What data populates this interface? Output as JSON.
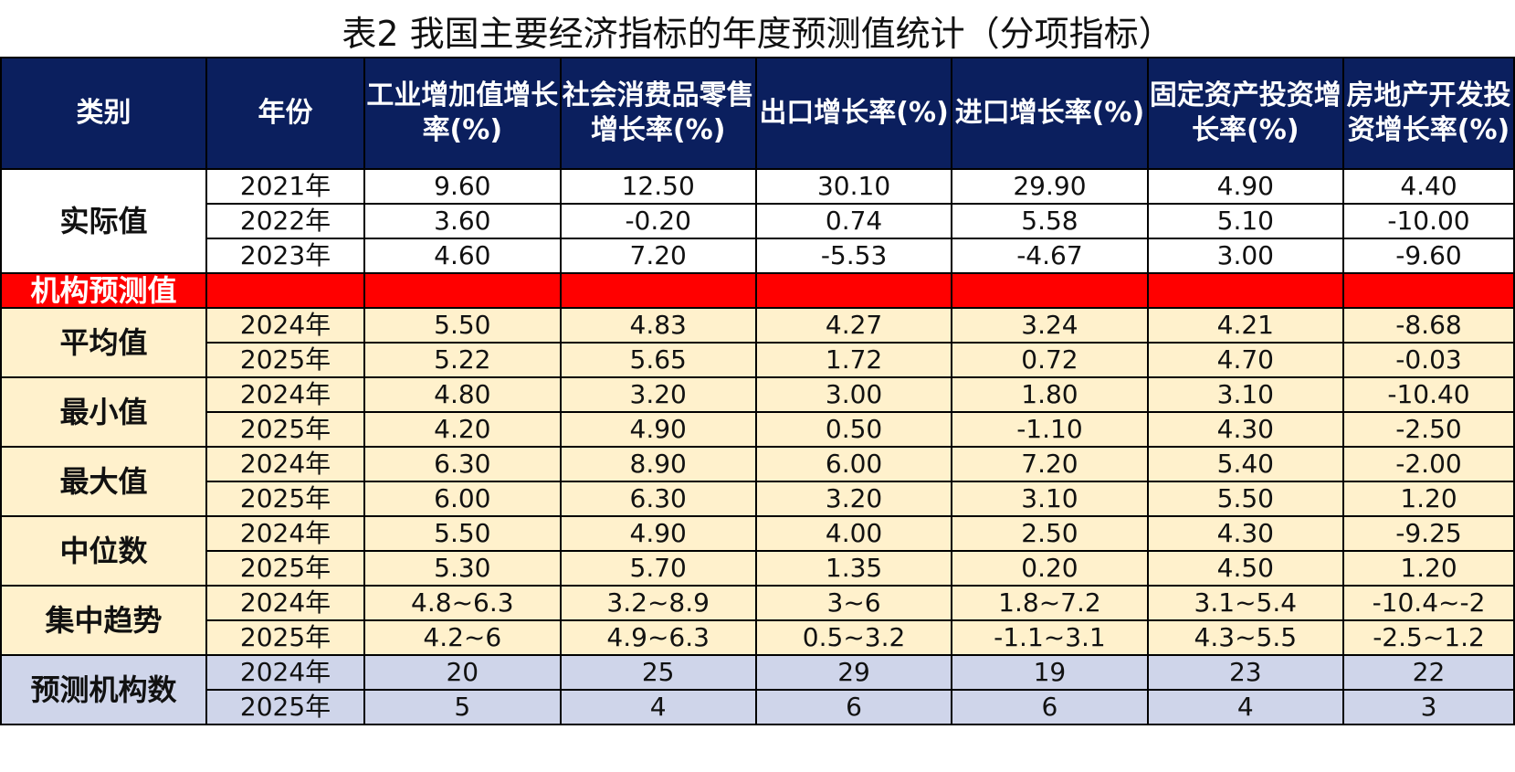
{
  "title": "表2 我国主要经济指标的年度预测值统计（分项指标）",
  "headers": [
    "类别",
    "年份",
    "工业增加值增长率(%)",
    "社会消费品零售增长率(%)",
    "出口增长率(%)",
    "进口增长率(%)",
    "固定资产投资增长率(%)",
    "房地产开发投资增长率(%)"
  ],
  "actual": {
    "label": "实际值",
    "rows": [
      {
        "year": "2021年",
        "values": [
          "9.60",
          "12.50",
          "30.10",
          "29.90",
          "4.90",
          "4.40"
        ]
      },
      {
        "year": "2022年",
        "values": [
          "3.60",
          "-0.20",
          "0.74",
          "5.58",
          "5.10",
          "-10.00"
        ]
      },
      {
        "year": "2023年",
        "values": [
          "4.60",
          "7.20",
          "-5.53",
          "-4.67",
          "3.00",
          "-9.60"
        ]
      }
    ]
  },
  "institution_label": "机构预测值",
  "groups": [
    {
      "label": "平均值",
      "rows": [
        {
          "year": "2024年",
          "values": [
            "5.50",
            "4.83",
            "4.27",
            "3.24",
            "4.21",
            "-8.68"
          ]
        },
        {
          "year": "2025年",
          "values": [
            "5.22",
            "5.65",
            "1.72",
            "0.72",
            "4.70",
            "-0.03"
          ]
        }
      ]
    },
    {
      "label": "最小值",
      "rows": [
        {
          "year": "2024年",
          "values": [
            "4.80",
            "3.20",
            "3.00",
            "1.80",
            "3.10",
            "-10.40"
          ]
        },
        {
          "year": "2025年",
          "values": [
            "4.20",
            "4.90",
            "0.50",
            "-1.10",
            "4.30",
            "-2.50"
          ]
        }
      ]
    },
    {
      "label": "最大值",
      "rows": [
        {
          "year": "2024年",
          "values": [
            "6.30",
            "8.90",
            "6.00",
            "7.20",
            "5.40",
            "-2.00"
          ]
        },
        {
          "year": "2025年",
          "values": [
            "6.00",
            "6.30",
            "3.20",
            "3.10",
            "5.50",
            "1.20"
          ]
        }
      ]
    },
    {
      "label": "中位数",
      "rows": [
        {
          "year": "2024年",
          "values": [
            "5.50",
            "4.90",
            "4.00",
            "2.50",
            "4.30",
            "-9.25"
          ]
        },
        {
          "year": "2025年",
          "values": [
            "5.30",
            "5.70",
            "1.35",
            "0.20",
            "4.50",
            "1.20"
          ]
        }
      ]
    },
    {
      "label": "集中趋势",
      "rows": [
        {
          "year": "2024年",
          "values": [
            "4.8~6.3",
            "3.2~8.9",
            "3~6",
            "1.8~7.2",
            "3.1~5.4",
            "-10.4~-2"
          ]
        },
        {
          "year": "2025年",
          "values": [
            "4.2~6",
            "4.9~6.3",
            "0.5~3.2",
            "-1.1~3.1",
            "4.3~5.5",
            "-2.5~1.2"
          ]
        }
      ]
    }
  ],
  "count": {
    "label": "预测机构数",
    "rows": [
      {
        "year": "2024年",
        "values": [
          "20",
          "25",
          "29",
          "19",
          "23",
          "22"
        ]
      },
      {
        "year": "2025年",
        "values": [
          "5",
          "4",
          "6",
          "6",
          "4",
          "3"
        ]
      }
    ]
  },
  "colors": {
    "header_bg": "#0b1f5e",
    "institution_bg": "#ff0000",
    "forecast_bg": "#fff1cc",
    "count_bg": "#cfd5ea"
  }
}
